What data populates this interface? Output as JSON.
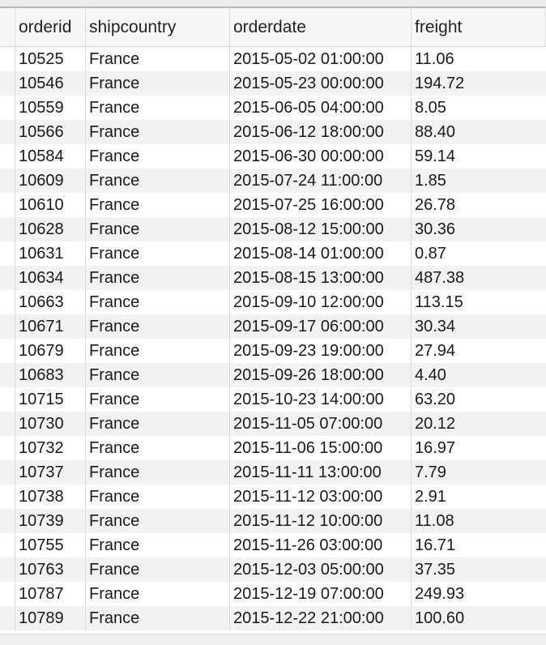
{
  "table": {
    "columns": [
      "orderid",
      "shipcountry",
      "orderdate",
      "freight"
    ],
    "rows": [
      [
        "10525",
        "France",
        "2015-05-02 01:00:00",
        "11.06"
      ],
      [
        "10546",
        "France",
        "2015-05-23 00:00:00",
        "194.72"
      ],
      [
        "10559",
        "France",
        "2015-06-05 04:00:00",
        "8.05"
      ],
      [
        "10566",
        "France",
        "2015-06-12 18:00:00",
        "88.40"
      ],
      [
        "10584",
        "France",
        "2015-06-30 00:00:00",
        "59.14"
      ],
      [
        "10609",
        "France",
        "2015-07-24 11:00:00",
        "1.85"
      ],
      [
        "10610",
        "France",
        "2015-07-25 16:00:00",
        "26.78"
      ],
      [
        "10628",
        "France",
        "2015-08-12 15:00:00",
        "30.36"
      ],
      [
        "10631",
        "France",
        "2015-08-14 01:00:00",
        "0.87"
      ],
      [
        "10634",
        "France",
        "2015-08-15 13:00:00",
        "487.38"
      ],
      [
        "10663",
        "France",
        "2015-09-10 12:00:00",
        "113.15"
      ],
      [
        "10671",
        "France",
        "2015-09-17 06:00:00",
        "30.34"
      ],
      [
        "10679",
        "France",
        "2015-09-23 19:00:00",
        "27.94"
      ],
      [
        "10683",
        "France",
        "2015-09-26 18:00:00",
        "4.40"
      ],
      [
        "10715",
        "France",
        "2015-10-23 14:00:00",
        "63.20"
      ],
      [
        "10730",
        "France",
        "2015-11-05 07:00:00",
        "20.12"
      ],
      [
        "10732",
        "France",
        "2015-11-06 15:00:00",
        "16.97"
      ],
      [
        "10737",
        "France",
        "2015-11-11 13:00:00",
        "7.79"
      ],
      [
        "10738",
        "France",
        "2015-11-12 03:00:00",
        "2.91"
      ],
      [
        "10739",
        "France",
        "2015-11-12 10:00:00",
        "11.08"
      ],
      [
        "10755",
        "France",
        "2015-11-26 03:00:00",
        "16.71"
      ],
      [
        "10763",
        "France",
        "2015-12-03 05:00:00",
        "37.35"
      ],
      [
        "10787",
        "France",
        "2015-12-19 07:00:00",
        "249.93"
      ],
      [
        "10789",
        "France",
        "2015-12-22 21:00:00",
        "100.60"
      ]
    ]
  }
}
